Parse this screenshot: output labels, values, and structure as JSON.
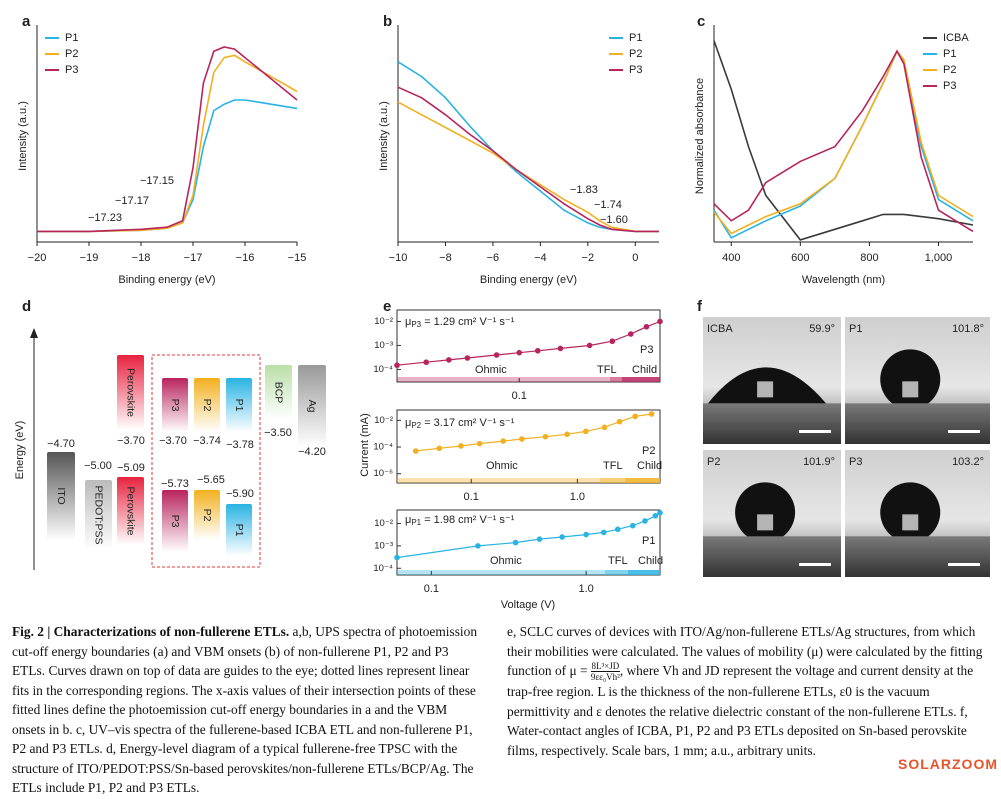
{
  "chart_data": [
    {
      "panel": "a",
      "type": "line",
      "x_label": "Binding energy (eV)",
      "y_label": "Intensity (a.u.)",
      "legend": "upper left",
      "x": [
        -20,
        -19,
        -18,
        -17.5,
        -17.2,
        -17,
        -16.8,
        -16.6,
        -16.4,
        -16.2,
        -16,
        -15.5,
        -15
      ],
      "xlim": [
        -20,
        -15
      ],
      "ylim": [
        0,
        1
      ],
      "xticks": [
        {
          "value": -20,
          "label": "−20"
        },
        {
          "value": -19,
          "label": "−19"
        },
        {
          "value": -18,
          "label": "−18"
        },
        {
          "value": -17,
          "label": "−17"
        },
        {
          "value": -16,
          "label": "−16"
        },
        {
          "value": -15,
          "label": "−15"
        }
      ],
      "series": [
        {
          "name": "P1",
          "color": "#29b3e3",
          "values": [
            0.05,
            0.05,
            0.055,
            0.065,
            0.09,
            0.2,
            0.45,
            0.62,
            0.65,
            0.67,
            0.67,
            0.65,
            0.63
          ]
        },
        {
          "name": "P2",
          "color": "#f2b01e",
          "values": [
            0.05,
            0.05,
            0.055,
            0.065,
            0.09,
            0.22,
            0.55,
            0.8,
            0.87,
            0.88,
            0.85,
            0.78,
            0.71
          ]
        },
        {
          "name": "P3",
          "color": "#b8245e",
          "values": [
            0.05,
            0.05,
            0.06,
            0.07,
            0.1,
            0.35,
            0.75,
            0.9,
            0.92,
            0.91,
            0.87,
            0.77,
            0.67
          ]
        }
      ],
      "annotations": [
        {
          "text": "−17.15",
          "color": "#29b3e3"
        },
        {
          "text": "−17.17",
          "color": "#f2b01e"
        },
        {
          "text": "−17.23",
          "color": "#b8245e"
        }
      ]
    },
    {
      "panel": "b",
      "type": "line",
      "x_label": "Binding energy (eV)",
      "y_label": "Intensity (a.u.)",
      "legend": "upper right",
      "x": [
        -10,
        -9,
        -8,
        -7,
        -6,
        -5,
        -4,
        -3,
        -2,
        -1.5,
        -1,
        0,
        1
      ],
      "xlim": [
        -10,
        1
      ],
      "ylim": [
        0,
        1
      ],
      "xticks": [
        {
          "value": -10,
          "label": "−10"
        },
        {
          "value": -8,
          "label": "−8"
        },
        {
          "value": -6,
          "label": "−6"
        },
        {
          "value": -4,
          "label": "−4"
        },
        {
          "value": -2,
          "label": "−2"
        },
        0
      ],
      "series": [
        {
          "name": "P1",
          "color": "#29b3e3",
          "values": [
            0.85,
            0.78,
            0.68,
            0.55,
            0.43,
            0.33,
            0.24,
            0.15,
            0.09,
            0.07,
            0.06,
            0.05,
            0.05
          ]
        },
        {
          "name": "P2",
          "color": "#f2b01e",
          "values": [
            0.66,
            0.6,
            0.54,
            0.48,
            0.42,
            0.34,
            0.27,
            0.2,
            0.14,
            0.1,
            0.07,
            0.05,
            0.05
          ]
        },
        {
          "name": "P3",
          "color": "#b8245e",
          "values": [
            0.73,
            0.68,
            0.6,
            0.51,
            0.43,
            0.34,
            0.26,
            0.18,
            0.11,
            0.08,
            0.06,
            0.05,
            0.05
          ]
        }
      ],
      "annotations": [
        {
          "text": "−1.83",
          "color": "#29b3e3"
        },
        {
          "text": "−1.74",
          "color": "#b8245e"
        },
        {
          "text": "−1.60",
          "color": "#f2b01e"
        }
      ]
    },
    {
      "panel": "c",
      "type": "line",
      "x_label": "Wavelength (nm)",
      "y_label": "Normalized absorbance",
      "legend": "upper right",
      "x": [
        350,
        400,
        450,
        500,
        600,
        700,
        780,
        840,
        880,
        900,
        950,
        1000,
        1100
      ],
      "xlim": [
        350,
        1100
      ],
      "ylim": [
        0,
        1
      ],
      "xticks": [
        400,
        600,
        800,
        {
          "value": 1000,
          "label": "1,000"
        }
      ],
      "series": [
        {
          "name": "ICBA",
          "color": "#3a3a3a",
          "values": [
            0.95,
            0.72,
            0.45,
            0.22,
            0.01,
            0.06,
            0.1,
            0.13,
            0.13,
            0.13,
            0.12,
            0.11,
            0.08
          ]
        },
        {
          "name": "P1",
          "color": "#29b3e3",
          "values": [
            0.15,
            0.02,
            0.06,
            0.1,
            0.17,
            0.3,
            0.55,
            0.75,
            0.9,
            0.85,
            0.45,
            0.2,
            0.1
          ]
        },
        {
          "name": "P2",
          "color": "#f2b01e",
          "values": [
            0.14,
            0.04,
            0.08,
            0.12,
            0.18,
            0.3,
            0.55,
            0.75,
            0.9,
            0.86,
            0.47,
            0.22,
            0.12
          ]
        },
        {
          "name": "P3",
          "color": "#b8245e",
          "values": [
            0.18,
            0.1,
            0.15,
            0.28,
            0.38,
            0.45,
            0.62,
            0.78,
            0.9,
            0.84,
            0.4,
            0.15,
            0.05
          ]
        }
      ]
    },
    {
      "panel": "e",
      "type": "scatter",
      "log_x": true,
      "log_y": true,
      "color": "#b8245e",
      "mobility_symbol": "μ",
      "mobility_sub": "P3",
      "mobility_value": " = 1.29 cm² V⁻¹ s⁻¹",
      "sample": "P3",
      "regions": [
        "Ohmic",
        "TFL",
        "Child"
      ],
      "x": [
        0.03,
        0.04,
        0.05,
        0.06,
        0.08,
        0.1,
        0.12,
        0.15,
        0.2,
        0.25,
        0.3,
        0.35,
        0.4
      ],
      "values": [
        0.00015,
        0.0002,
        0.00025,
        0.0003,
        0.0004,
        0.0005,
        0.0006,
        0.00075,
        0.001,
        0.0015,
        0.003,
        0.006,
        0.01
      ],
      "xlim": [
        0.03,
        0.4
      ],
      "ylim": [
        3e-05,
        0.03
      ],
      "xticks": [
        0.1
      ],
      "yticks": [
        {
          "value": 0.01,
          "label": "10⁻²"
        },
        {
          "value": 0.001,
          "label": "10⁻³"
        },
        {
          "value": 0.0001,
          "label": "10⁻⁴"
        }
      ]
    },
    {
      "panel": "",
      "type": "scatter",
      "log_x": true,
      "log_y": true,
      "color": "#f2b01e",
      "y_label": "Current (mA)",
      "mobility_symbol": "μ",
      "mobility_sub": "P2",
      "mobility_value": " = 3.17 cm² V⁻¹ s⁻¹",
      "sample": "P2",
      "regions": [
        "Ohmic",
        "TFL",
        "Child"
      ],
      "x": [
        0.03,
        0.05,
        0.08,
        0.12,
        0.2,
        0.3,
        0.5,
        0.8,
        1.2,
        1.8,
        2.5,
        3.5,
        5
      ],
      "values": [
        5e-05,
        8e-05,
        0.00012,
        0.00018,
        0.00028,
        0.0004,
        0.0006,
        0.0009,
        0.0015,
        0.003,
        0.008,
        0.02,
        0.03
      ],
      "xlim": [
        0.02,
        6
      ],
      "ylim": [
        2e-07,
        0.06
      ],
      "xticks": [
        0.1,
        {
          "value": 1,
          "label": "1.0"
        }
      ],
      "yticks": [
        {
          "value": 0.01,
          "label": "10⁻²"
        },
        {
          "value": 0.0001,
          "label": "10⁻⁴"
        },
        {
          "value": 1e-06,
          "label": "10⁻⁶"
        }
      ]
    },
    {
      "panel": "",
      "type": "scatter",
      "log_x": true,
      "log_y": true,
      "color": "#29b3e3",
      "x_label": "Voltage (V)",
      "mobility_symbol": "μ",
      "mobility_sub": "P1",
      "mobility_value": " = 1.98 cm² V⁻¹ s⁻¹",
      "sample": "P1",
      "regions": [
        "Ohmic",
        "TFL",
        "Child"
      ],
      "x": [
        0.06,
        0.2,
        0.35,
        0.5,
        0.7,
        1.0,
        1.3,
        1.6,
        2.0,
        2.4,
        2.8,
        3.0
      ],
      "values": [
        0.0003,
        0.001,
        0.0014,
        0.002,
        0.0025,
        0.0032,
        0.004,
        0.0055,
        0.008,
        0.013,
        0.022,
        0.03
      ],
      "xlim": [
        0.06,
        3
      ],
      "ylim": [
        5e-05,
        0.04
      ],
      "xticks": [
        0.1,
        {
          "value": 1,
          "label": "1.0"
        }
      ],
      "yticks": [
        {
          "value": 0.01,
          "label": "10⁻²"
        },
        {
          "value": 0.001,
          "label": "10⁻³"
        },
        {
          "value": 0.0001,
          "label": "10⁻⁴"
        }
      ]
    }
  ],
  "energy_diagram": {
    "panel": "d",
    "y_label": "Energy (eV)",
    "boxes": [
      {
        "name": "ITO",
        "level": "−4.70"
      },
      {
        "name": "PEDOT:PSS",
        "level": "−5.00"
      },
      {
        "name": "Perovskite",
        "level": "−3.70"
      },
      {
        "name": "Perovskite",
        "level": "−5.09"
      },
      {
        "name": "P3",
        "level": "−3.70"
      },
      {
        "name": "P3",
        "level": "−5.73"
      },
      {
        "name": "P2",
        "level": "−3.74"
      },
      {
        "name": "P2",
        "level": "−5.65"
      },
      {
        "name": "P1",
        "level": "−3.78"
      },
      {
        "name": "P1",
        "level": "−5.90"
      },
      {
        "name": "BCP",
        "level": "−3.50"
      },
      {
        "name": "Ag",
        "level": "−4.20"
      }
    ]
  },
  "contact_angles": {
    "panel": "f",
    "images": [
      {
        "name": "ICBA",
        "angle": "59.9°"
      },
      {
        "name": "P1",
        "angle": "101.8°"
      },
      {
        "name": "P2",
        "angle": "101.9°"
      },
      {
        "name": "P3",
        "angle": "103.2°"
      }
    ]
  },
  "caption": {
    "lead": "Fig. 2 | Characterizations of non-fullerene ETLs.",
    "left": " a,b, UPS spectra of photoemission cut-off energy boundaries (a) and VBM onsets (b) of non-fullerene P1, P2 and P3 ETLs. Curves drawn on top of data are guides to the eye; dotted lines represent linear fits in the corresponding regions. The x-axis values of their intersection points of these fitted lines define the photoemission cut-off energy boundaries in a and the VBM onsets in b. c, UV–vis spectra of the fullerene-based ICBA ETL and non-fullerene P1, P2 and P3 ETLs. d, Energy-level diagram of a typical fullerene-free TPSC with the structure of ITO/PEDOT:PSS/Sn-based perovskites/non-fullerene ETLs/BCP/Ag. The ETLs include P1, P2 and P3 ETLs.",
    "right_1": "e, SCLC curves of devices with ITO/Ag/non-fullerene ETLs/Ag structures, from which their mobilities were calculated. The values of mobility (μ) were calculated by the fitting function of μ = ",
    "formula_num": "8L³×JD",
    "formula_den": "9εε₀Vh²",
    "right_2": ", where Vh and JD represent the voltage and current density at the trap-free region. L is the thickness of the non-fullerene ETLs, ε0 is the vacuum permittivity and ε denotes the relative dielectric constant of the non-fullerene ETLs. f, Water-contact angles of ICBA, P1, P2 and P3 ETLs deposited on Sn-based perovskite films, respectively. Scale bars, 1 mm; a.u., arbitrary units."
  },
  "watermark": "SOLARZOOM"
}
